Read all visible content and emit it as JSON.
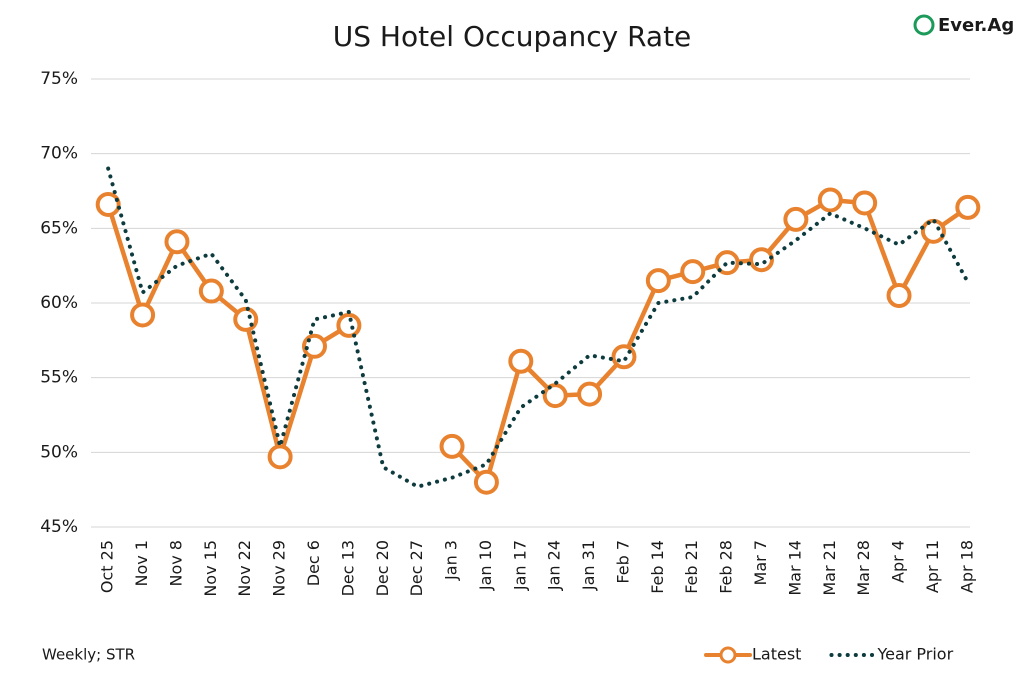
{
  "chart_data": {
    "type": "line",
    "title": "US Hotel Occupancy Rate",
    "logo": "Ever.Ag",
    "note": "Weekly; STR",
    "categories": [
      "Oct 25",
      "Nov 1",
      "Nov 8",
      "Nov 15",
      "Nov 22",
      "Nov 29",
      "Dec 6",
      "Dec 13",
      "Dec 20",
      "Dec 27",
      "Jan 3",
      "Jan 10",
      "Jan 17",
      "Jan 24",
      "Jan 31",
      "Feb 7",
      "Feb 14",
      "Feb 21",
      "Feb 28",
      "Mar 7",
      "Mar 14",
      "Mar 21",
      "Mar 28",
      "Apr 4",
      "Apr 11",
      "Apr 18"
    ],
    "series": [
      {
        "name": "Latest",
        "color": "#e8822e",
        "style": "solid-markers",
        "values": [
          66.6,
          59.2,
          64.1,
          60.8,
          58.9,
          49.7,
          57.1,
          58.5,
          null,
          null,
          50.4,
          48.0,
          56.1,
          53.8,
          53.9,
          56.4,
          61.5,
          62.1,
          62.7,
          62.9,
          65.6,
          66.9,
          66.7,
          60.5,
          64.8,
          66.4
        ]
      },
      {
        "name": "Year Prior",
        "color": "#0d3b3e",
        "style": "dotted",
        "values": [
          69.0,
          60.7,
          62.5,
          63.3,
          60.2,
          50.4,
          58.9,
          59.4,
          49.0,
          47.7,
          48.3,
          49.2,
          53.0,
          54.6,
          56.5,
          56.1,
          60.0,
          60.4,
          62.7,
          62.6,
          64.2,
          66.0,
          65.0,
          63.9,
          65.6,
          61.4
        ]
      }
    ],
    "ylim": [
      45,
      75
    ],
    "yticks": [
      {
        "value": 45,
        "label": "45%"
      },
      {
        "value": 50,
        "label": "50%"
      },
      {
        "value": 55,
        "label": "55%"
      },
      {
        "value": 60,
        "label": "60%"
      },
      {
        "value": 65,
        "label": "65%"
      },
      {
        "value": 70,
        "label": "70%"
      },
      {
        "value": 75,
        "label": "75%"
      }
    ],
    "grid": true,
    "legend": "bottom-right"
  }
}
